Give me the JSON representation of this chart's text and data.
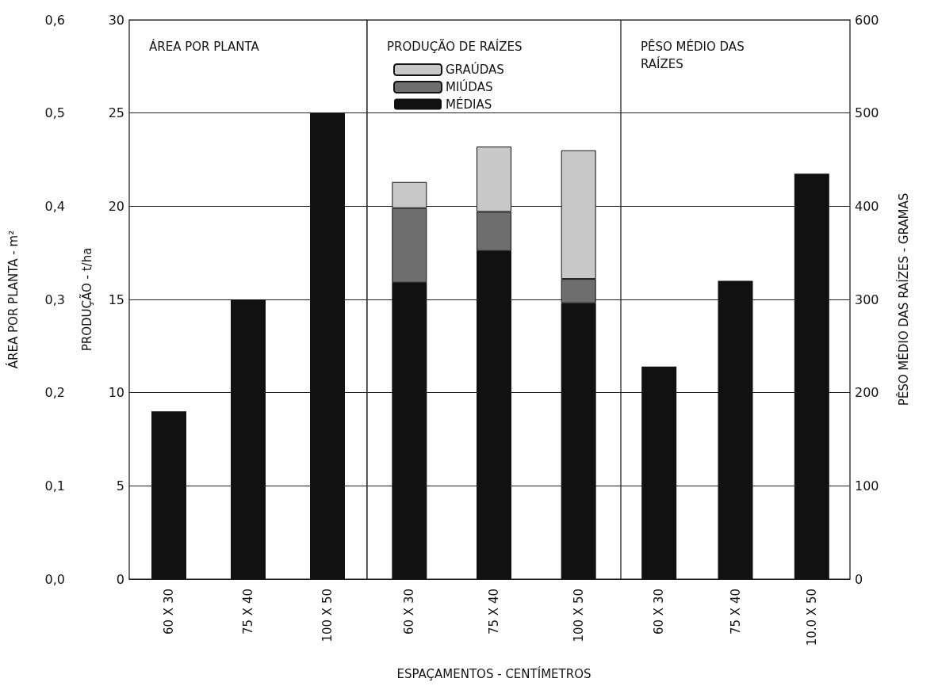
{
  "chart_data": [
    {
      "type": "bar",
      "title": "ÁREA POR PLANTA",
      "ylabel": "ÁREA POR PLANTA - m²",
      "y2label": "PRODUÇÃO - t/ha",
      "categories": [
        "60 X 30",
        "75 X 40",
        "100 X 50"
      ],
      "values": [
        0.18,
        0.3,
        0.5
      ],
      "color": "#111111",
      "ylim": [
        0,
        0.6
      ],
      "yticks": [
        {
          "value": 0,
          "label": "0,0"
        },
        {
          "value": 0.1,
          "label": "0,1"
        },
        {
          "value": 0.2,
          "label": "0,2"
        },
        {
          "value": 0.3,
          "label": "0,3"
        },
        {
          "value": 0.4,
          "label": "0,4"
        },
        {
          "value": 0.5,
          "label": "0,5"
        },
        {
          "value": 0.6,
          "label": "0,6"
        }
      ],
      "y2lim": [
        0,
        30
      ],
      "y2ticks": [
        0,
        5,
        10,
        15,
        20,
        25,
        30
      ],
      "grid": "y"
    },
    {
      "type": "bar",
      "title": "PRODUÇÃO DE RAÍZES",
      "xlabel": "ESPAÇAMENTOS - CENTÍMETROS",
      "categories": [
        "60 X 30",
        "75 X 40",
        "100 X 50"
      ],
      "stacked": true,
      "series": [
        {
          "name": "MÉDIAS",
          "color": "#111111",
          "values": [
            15.9,
            17.6,
            14.8
          ]
        },
        {
          "name": "MIÚDAS",
          "color": "#6e6e6e",
          "values": [
            4.0,
            2.1,
            1.3
          ]
        },
        {
          "name": "GRAÚDAS",
          "color": "#c8c8c8",
          "values": [
            1.4,
            3.5,
            6.9
          ]
        }
      ],
      "ylim": [
        0,
        30
      ],
      "yticks": [
        0,
        5,
        10,
        15,
        20,
        25,
        30
      ],
      "tick_labels": "x",
      "grid": "y",
      "legend": "top left"
    },
    {
      "type": "bar",
      "title": "PÊSO MÉDIO DAS RAÍZES",
      "ylabel": "PÊSO MÉDIO DAS RAÍZES - GRAMAS",
      "categories": [
        "60 X 30",
        "75 X 40",
        "10.0 X 50"
      ],
      "values": [
        228,
        320,
        435
      ],
      "color": "#111111",
      "ylim": [
        0,
        600
      ],
      "yticks": [
        0,
        100,
        200,
        300,
        400,
        500,
        600
      ],
      "grid": "y"
    }
  ]
}
